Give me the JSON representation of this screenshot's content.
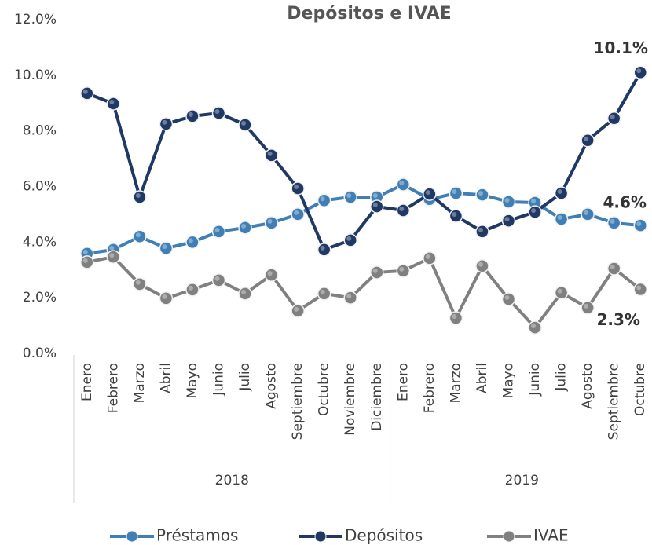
{
  "chart_data": {
    "type": "line",
    "title": "Depósitos e IVAE",
    "categories": [
      "Enero",
      "Febrero",
      "Marzo",
      "Abril",
      "Mayo",
      "Junio",
      "Julio",
      "Agosto",
      "Septiembre",
      "Octubre",
      "Noviembre",
      "Diciembre",
      "Enero",
      "Febrero",
      "Marzo",
      "Abril",
      "Mayo",
      "Junio",
      "Julio",
      "Agosto",
      "Septiembre",
      "Octubre"
    ],
    "groups": [
      "2018",
      "2019"
    ],
    "series": [
      {
        "name": "Préstamos",
        "color": "#3f7fb5",
        "values": [
          3.59,
          3.73,
          4.2,
          3.78,
          4.0,
          4.38,
          4.52,
          4.69,
          5.0,
          5.5,
          5.62,
          5.62,
          6.07,
          5.54,
          5.76,
          5.7,
          5.45,
          5.42,
          4.83,
          5.0,
          4.69,
          4.6
        ],
        "value_labels": [
          null,
          null,
          null,
          null,
          null,
          null,
          null,
          null,
          null,
          null,
          null,
          null,
          null,
          null,
          null,
          null,
          null,
          null,
          null,
          null,
          null,
          "4.6%"
        ]
      },
      {
        "name": "Depósitos",
        "color": "#1f3864",
        "values": [
          9.35,
          8.98,
          5.62,
          8.25,
          8.53,
          8.64,
          8.22,
          7.12,
          5.93,
          3.73,
          4.07,
          5.28,
          5.14,
          5.73,
          4.94,
          4.38,
          4.77,
          5.08,
          5.76,
          7.66,
          8.45,
          10.1
        ],
        "value_labels": [
          null,
          null,
          null,
          null,
          null,
          null,
          null,
          null,
          null,
          null,
          null,
          null,
          null,
          null,
          null,
          null,
          null,
          null,
          null,
          null,
          null,
          "10.1%"
        ]
      },
      {
        "name": "IVAE",
        "color": "#808080",
        "values": [
          3.28,
          3.47,
          2.49,
          1.98,
          2.29,
          2.63,
          2.15,
          2.82,
          1.53,
          2.15,
          2.0,
          2.91,
          2.97,
          3.42,
          1.27,
          3.14,
          1.95,
          0.93,
          2.18,
          1.64,
          3.05,
          2.3
        ],
        "value_labels": [
          null,
          null,
          null,
          null,
          null,
          null,
          null,
          null,
          null,
          null,
          null,
          null,
          null,
          null,
          null,
          null,
          null,
          null,
          null,
          null,
          null,
          "2.3%"
        ]
      }
    ],
    "ylim": [
      0,
      12
    ],
    "yticks": [
      {
        "value": 0,
        "label": "0.0%"
      },
      {
        "value": 2,
        "label": "2.0%"
      },
      {
        "value": 4,
        "label": "4.0%"
      },
      {
        "value": 6,
        "label": "6.0%"
      },
      {
        "value": 8,
        "label": "8.0%"
      },
      {
        "value": 10,
        "label": "10.0%"
      },
      {
        "value": 12,
        "label": "12.0%"
      }
    ],
    "grid": false,
    "legend": "bottom"
  }
}
